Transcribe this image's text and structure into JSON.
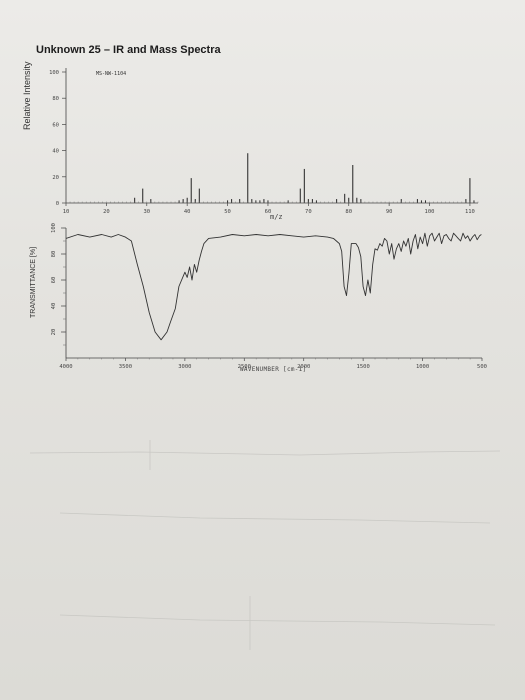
{
  "page": {
    "title": "Unknown 25 – IR and Mass Spectra"
  },
  "chart_data": [
    {
      "type": "bar",
      "name": "Mass spectrum",
      "code": "MS-NW-1104",
      "ylabel": "Relative Intensity",
      "xlabel": "m/z",
      "xlim": [
        10,
        112
      ],
      "ylim": [
        0,
        100
      ],
      "xticks": [
        10,
        20,
        30,
        40,
        50,
        60,
        70,
        80,
        90,
        100,
        110
      ],
      "yticks": [
        0,
        20,
        40,
        60,
        80,
        100
      ],
      "grid": false,
      "x": [
        27,
        29,
        31,
        38,
        39,
        40,
        41,
        42,
        43,
        50,
        51,
        53,
        55,
        56,
        57,
        58,
        59,
        60,
        65,
        68,
        69,
        70,
        71,
        72,
        77,
        79,
        80,
        81,
        82,
        83,
        93,
        97,
        98,
        99,
        109,
        110,
        111
      ],
      "y": [
        4,
        11,
        3,
        2,
        3,
        4,
        19,
        3,
        11,
        2,
        3,
        3,
        38,
        3,
        2,
        2,
        3,
        2,
        2,
        11,
        26,
        3,
        3,
        2,
        3,
        7,
        4,
        29,
        4,
        3,
        3,
        3,
        2,
        2,
        3,
        19,
        2
      ]
    },
    {
      "type": "line",
      "name": "IR spectrum",
      "ylabel": "TRANSMITTANCE [%]",
      "xlabel": "WAVENUMBER [cm-1]",
      "xlim": [
        4000,
        500
      ],
      "ylim": [
        0,
        100
      ],
      "xticks": [
        4000,
        3500,
        3000,
        2500,
        2000,
        1500,
        1000,
        500
      ],
      "yticks": [
        20,
        40,
        60,
        80,
        100
      ],
      "grid": false,
      "x": [
        4000,
        3900,
        3800,
        3700,
        3620,
        3560,
        3500,
        3450,
        3400,
        3350,
        3300,
        3250,
        3200,
        3150,
        3120,
        3080,
        3050,
        3000,
        2980,
        2960,
        2940,
        2920,
        2900,
        2880,
        2860,
        2840,
        2800,
        2700,
        2600,
        2500,
        2400,
        2300,
        2200,
        2100,
        2000,
        1900,
        1800,
        1750,
        1700,
        1680,
        1660,
        1640,
        1620,
        1600,
        1560,
        1540,
        1520,
        1500,
        1480,
        1460,
        1440,
        1420,
        1400,
        1380,
        1360,
        1340,
        1320,
        1300,
        1280,
        1260,
        1240,
        1220,
        1200,
        1180,
        1160,
        1140,
        1120,
        1100,
        1080,
        1060,
        1040,
        1020,
        1000,
        980,
        960,
        940,
        920,
        900,
        880,
        860,
        840,
        820,
        800,
        780,
        760,
        740,
        720,
        700,
        680,
        660,
        640,
        620,
        600,
        580,
        560,
        540,
        520,
        505
      ],
      "y": [
        92,
        95,
        93,
        95,
        93,
        95,
        93,
        90,
        72,
        55,
        35,
        20,
        14,
        20,
        28,
        38,
        55,
        66,
        62,
        70,
        60,
        72,
        66,
        75,
        82,
        88,
        92,
        93,
        95,
        94,
        95,
        94,
        95,
        94,
        93,
        94,
        93,
        92,
        88,
        82,
        55,
        48,
        65,
        88,
        88,
        85,
        78,
        55,
        48,
        60,
        50,
        72,
        84,
        83,
        88,
        86,
        92,
        90,
        80,
        88,
        76,
        84,
        88,
        82,
        90,
        86,
        92,
        80,
        90,
        95,
        84,
        93,
        88,
        96,
        86,
        94,
        96,
        90,
        93,
        96,
        88,
        94,
        95,
        92,
        90,
        96,
        94,
        92,
        90,
        96,
        92,
        94,
        90,
        93,
        95,
        91,
        94,
        95
      ]
    }
  ]
}
